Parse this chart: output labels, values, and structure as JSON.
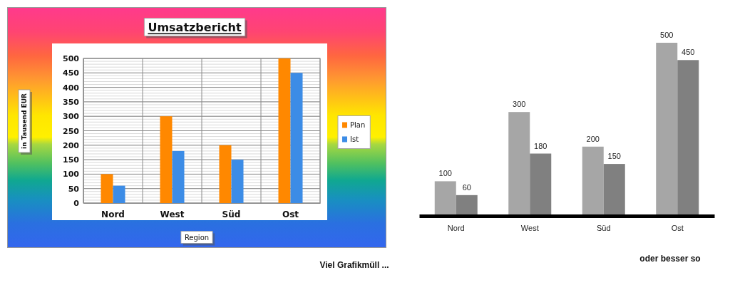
{
  "chart_data": [
    {
      "type": "bar",
      "title": "Umsatzbericht",
      "xlabel": "Region",
      "ylabel": "in Tausend EUR",
      "categories": [
        "Nord",
        "West",
        "Süd",
        "Ost"
      ],
      "series": [
        {
          "name": "Plan",
          "color": "#ff8800",
          "values": [
            100,
            300,
            200,
            500
          ]
        },
        {
          "name": "Ist",
          "color": "#3c8ce6",
          "values": [
            60,
            180,
            150,
            450
          ]
        }
      ],
      "ylim": [
        0,
        500
      ],
      "yticks": [
        0,
        50,
        100,
        150,
        200,
        250,
        300,
        350,
        400,
        450,
        500
      ],
      "grid": true,
      "legend": "right",
      "annotations": [
        "Viel Grafikmüll ..."
      ]
    },
    {
      "type": "bar",
      "categories": [
        "Nord",
        "West",
        "Süd",
        "Ost"
      ],
      "series": [
        {
          "color": "#a6a6a6",
          "values": [
            100,
            300,
            200,
            500
          ]
        },
        {
          "color": "#808080",
          "values": [
            60,
            180,
            150,
            450
          ]
        }
      ],
      "data_labels": true,
      "tick_labels": "x",
      "annotations": [
        "oder besser so"
      ]
    }
  ]
}
